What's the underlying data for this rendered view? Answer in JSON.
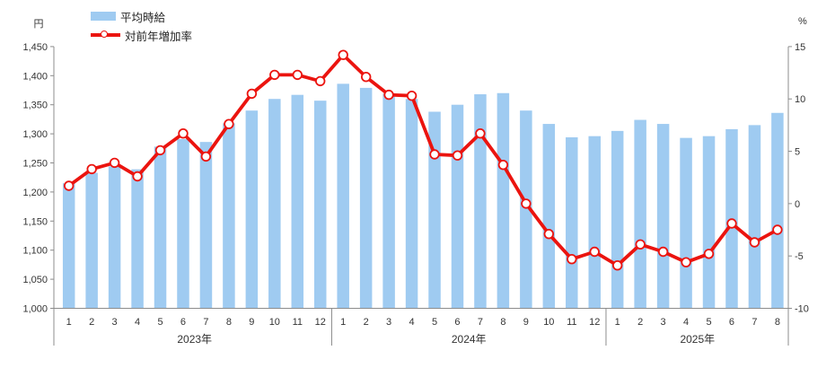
{
  "chart_data": {
    "type": "combo",
    "title": "",
    "categories": [
      "1",
      "2",
      "3",
      "4",
      "5",
      "6",
      "7",
      "8",
      "9",
      "10",
      "11",
      "12",
      "1",
      "2",
      "3",
      "4",
      "5",
      "6",
      "7",
      "8",
      "9",
      "10",
      "11",
      "12",
      "1",
      "2",
      "3",
      "4",
      "5",
      "6",
      "7",
      "8"
    ],
    "year_groups": [
      {
        "label": "2023年",
        "count": 12
      },
      {
        "label": "2024年",
        "count": 12
      },
      {
        "label": "2025年",
        "count": 8
      }
    ],
    "series": [
      {
        "name": "平均時給",
        "type": "bar",
        "axis": "left",
        "color": "#9FCBF1",
        "values": [
          1215,
          1233,
          1244,
          1239,
          1278,
          1291,
          1286,
          1318,
          1340,
          1360,
          1367,
          1357,
          1386,
          1379,
          1369,
          1360,
          1338,
          1350,
          1368,
          1370,
          1340,
          1317,
          1294,
          1296,
          1305,
          1324,
          1317,
          1293,
          1296,
          1308,
          1315,
          1336
        ]
      },
      {
        "name": "対前年増加率",
        "type": "line",
        "axis": "right",
        "color": "#EB140F",
        "marker": "circle-white",
        "values": [
          1.7,
          3.3,
          3.9,
          2.6,
          5.1,
          6.7,
          4.5,
          7.6,
          10.5,
          12.3,
          12.3,
          11.7,
          14.2,
          12.1,
          10.4,
          10.3,
          4.7,
          4.6,
          6.7,
          3.7,
          0.0,
          -2.9,
          -5.3,
          -4.6,
          -5.9,
          -3.9,
          -4.6,
          -5.6,
          -4.8,
          -1.9,
          -3.7,
          -2.5
        ]
      }
    ],
    "left_axis": {
      "unit": "円",
      "min": 1000,
      "max": 1450,
      "step": 50,
      "tick_labels": [
        "1,000",
        "1,050",
        "1,100",
        "1,150",
        "1,200",
        "1,250",
        "1,300",
        "1,350",
        "1,400",
        "1,450"
      ]
    },
    "right_axis": {
      "unit": "%",
      "min": -10,
      "max": 15,
      "step": 5,
      "tick_labels": [
        "-10",
        "-5",
        "0",
        "5",
        "10",
        "15"
      ]
    },
    "legend_position": "top-left",
    "grid": false
  },
  "colors": {
    "bar": "#9FCBF1",
    "line": "#EB140F",
    "marker_fill": "#FFFFFF",
    "axis": "#8C8C8C",
    "text": "#333333",
    "background": "#FFFFFF"
  }
}
